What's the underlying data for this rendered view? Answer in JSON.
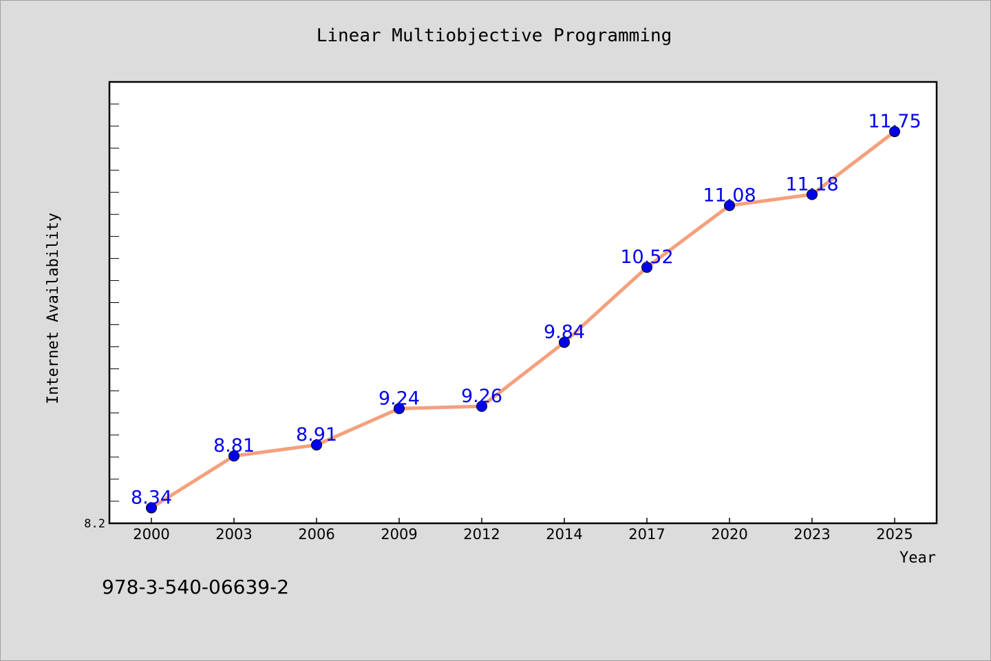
{
  "chart_data": {
    "type": "line",
    "title": "Linear Multiobjective Programming",
    "xlabel": "Year",
    "ylabel": "Internet Availability",
    "categories": [
      "2000",
      "2003",
      "2006",
      "2009",
      "2012",
      "2014",
      "2017",
      "2020",
      "2023",
      "2025"
    ],
    "series": [
      {
        "values": [
          8.34,
          8.81,
          8.91,
          9.24,
          9.26,
          9.84,
          10.52,
          11.08,
          11.18,
          11.75
        ],
        "labels": [
          "8.34",
          "8.81",
          "8.91",
          "9.24",
          "9.26",
          "9.84",
          "10.52",
          "11.08",
          "11.18",
          "11.75"
        ]
      }
    ],
    "ylim": [
      8.2,
      12.2
    ],
    "yticks_labeled": [
      "8.2"
    ],
    "grid": false,
    "line_color": "#f4a07c",
    "marker_color": "#0000ee",
    "label_color": "#0000ee"
  },
  "footer": {
    "code": "978-3-540-06639-2"
  }
}
